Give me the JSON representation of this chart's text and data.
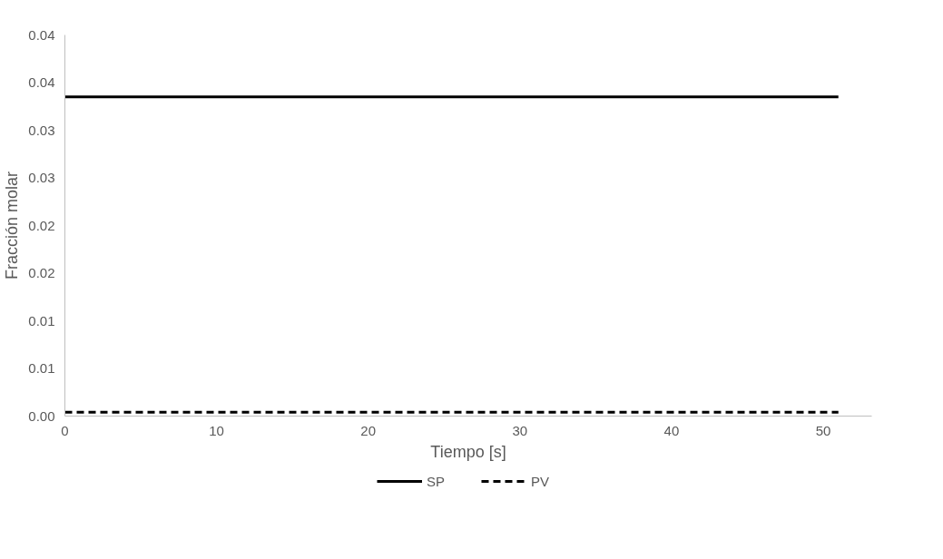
{
  "chart_data": {
    "type": "line",
    "xlabel": "Tiempo [s]",
    "ylabel": "Fracción molar",
    "x": [
      0,
      51
    ],
    "series": [
      {
        "name": "SP",
        "color": "#000000",
        "line_style": "solid",
        "values": [
          0.0335,
          0.0335
        ]
      },
      {
        "name": "PV",
        "color": "#000000",
        "line_style": "dashed",
        "values": [
          0.0004,
          0.0004
        ]
      }
    ],
    "xlim": [
      0,
      53.2
    ],
    "xticks": [
      0,
      10,
      20,
      30,
      40,
      50
    ],
    "ylim": [
      0,
      0.04
    ],
    "yticks": [
      {
        "value": 0,
        "label": "0.00"
      },
      {
        "value": 0.005,
        "label": "0.01"
      },
      {
        "value": 0.01,
        "label": "0.01"
      },
      {
        "value": 0.015,
        "label": "0.02"
      },
      {
        "value": 0.02,
        "label": "0.02"
      },
      {
        "value": 0.025,
        "label": "0.03"
      },
      {
        "value": 0.03,
        "label": "0.03"
      },
      {
        "value": 0.035,
        "label": "0.04"
      },
      {
        "value": 0.04,
        "label": "0.04"
      }
    ],
    "grid": false,
    "legend": "bottom",
    "marker": "none"
  }
}
